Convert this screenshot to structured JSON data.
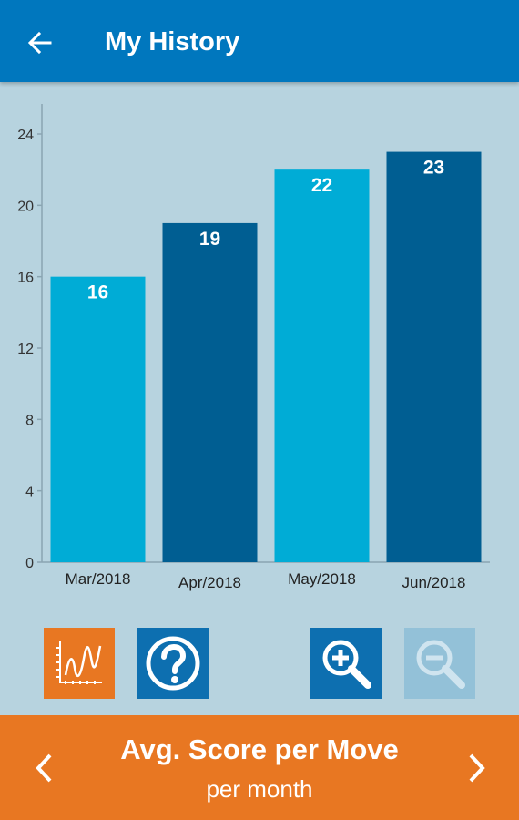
{
  "header": {
    "title": "My History",
    "back_icon": "arrow-left-icon",
    "color": "#0077be"
  },
  "chart_data": {
    "type": "bar",
    "categories": [
      "Mar/2018",
      "Apr/2018",
      "May/2018",
      "Jun/2018"
    ],
    "values": [
      16,
      19,
      22,
      23
    ],
    "bar_colors": [
      "#00acd6",
      "#005e92",
      "#00acd6",
      "#005e92"
    ],
    "yticks": [
      0,
      4,
      8,
      12,
      16,
      20,
      24
    ],
    "ylim": [
      0,
      24
    ],
    "grid": false,
    "data_labels": true
  },
  "toolbar": {
    "trend_icon": "trend-chart-icon",
    "help_icon": "help-icon",
    "zoom_in_icon": "zoom-in-icon",
    "zoom_out_icon": "zoom-out-icon",
    "zoom_out_enabled": false
  },
  "footer": {
    "metric_title": "Avg. Score per Move",
    "metric_subtitle": "per month",
    "prev_icon": "chevron-left-icon",
    "next_icon": "chevron-right-icon",
    "color": "#e87722"
  }
}
